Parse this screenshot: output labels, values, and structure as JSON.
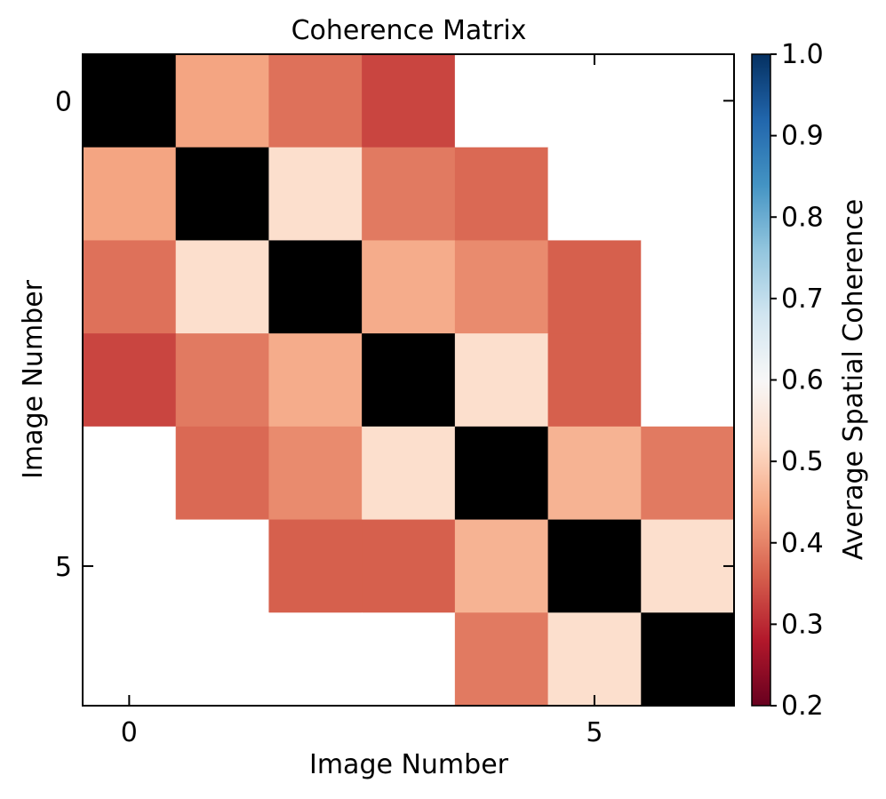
{
  "chart_data": {
    "type": "heatmap",
    "title": "Coherence Matrix",
    "xlabel": "Image Number",
    "ylabel": "Image Number",
    "x_ticks": [
      0,
      5
    ],
    "y_ticks": [
      0,
      5
    ],
    "x_tick_labels": [
      "0",
      "5"
    ],
    "y_tick_labels": [
      "0",
      "5"
    ],
    "size": 7,
    "diagonal_color": "#000000",
    "missing_color": "#ffffff",
    "matrix": [
      [
        null,
        0.44,
        0.38,
        0.33,
        null,
        null,
        null
      ],
      [
        0.44,
        null,
        0.53,
        0.39,
        0.37,
        null,
        null
      ],
      [
        0.38,
        0.53,
        null,
        0.45,
        0.41,
        0.36,
        null
      ],
      [
        0.33,
        0.39,
        0.45,
        null,
        0.53,
        0.36,
        null
      ],
      [
        null,
        0.37,
        0.41,
        0.53,
        null,
        0.46,
        0.39
      ],
      [
        null,
        null,
        0.36,
        0.36,
        0.46,
        null,
        0.53
      ],
      [
        null,
        null,
        null,
        null,
        0.39,
        0.53,
        null
      ]
    ],
    "colorbar": {
      "label": "Average Spatial Coherence",
      "colormap": "RdBu",
      "vmin": 0.2,
      "vmax": 1.0,
      "ticks": [
        0.2,
        0.3,
        0.4,
        0.5,
        0.6,
        0.7,
        0.8,
        0.9,
        1.0
      ],
      "tick_labels": [
        "0.2",
        "0.3",
        "0.4",
        "0.5",
        "0.6",
        "0.7",
        "0.8",
        "0.9",
        "1.0"
      ]
    }
  }
}
